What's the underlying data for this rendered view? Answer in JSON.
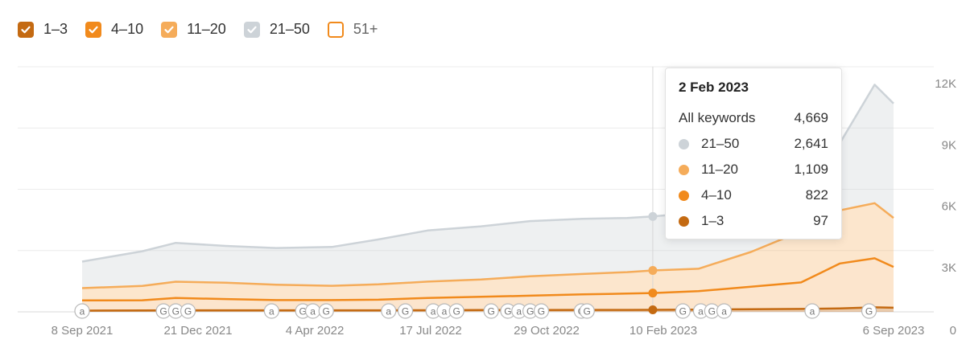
{
  "legend": {
    "items": [
      {
        "label": "1–3",
        "checked": true,
        "color": "#c46a12"
      },
      {
        "label": "4–10",
        "checked": true,
        "color": "#f18a1c"
      },
      {
        "label": "11–20",
        "checked": true,
        "color": "#f5ac5a"
      },
      {
        "label": "21–50",
        "checked": true,
        "color": "#cdd3d8"
      },
      {
        "label": "51+",
        "checked": false,
        "color": "#f18a1c"
      }
    ]
  },
  "tooltip": {
    "date": "2 Feb 2023",
    "total_label": "All keywords",
    "total_value": "4,669",
    "rows": [
      {
        "label": "21–50",
        "value": "2,641",
        "color": "#cdd3d8"
      },
      {
        "label": "11–20",
        "value": "1,109",
        "color": "#f5ac5a"
      },
      {
        "label": "4–10",
        "value": "822",
        "color": "#f18a1c"
      },
      {
        "label": "1–3",
        "value": "97",
        "color": "#c46a12"
      }
    ]
  },
  "chart_data": {
    "type": "area",
    "stacked": true,
    "x_range": [
      "2021-09-08",
      "2023-09-06"
    ],
    "x_tick_labels": [
      "8 Sep 2021",
      "21 Dec 2021",
      "4 Apr 2022",
      "17 Jul 2022",
      "29 Oct 2022",
      "10 Feb 2023",
      "6 Sep 2023"
    ],
    "y_tick_labels": [
      "0",
      "3K",
      "6K",
      "9K",
      "12K"
    ],
    "ylim": [
      0,
      12000
    ],
    "y_axis_position": "right",
    "grid": true,
    "highlight_date": "2023-02-02",
    "x": [
      "2021-09-08",
      "2021-11-01",
      "2021-12-01",
      "2022-01-15",
      "2022-03-01",
      "2022-04-20",
      "2022-06-01",
      "2022-07-15",
      "2022-09-01",
      "2022-10-15",
      "2022-12-01",
      "2023-01-10",
      "2023-02-02",
      "2023-03-15",
      "2023-05-01",
      "2023-06-15",
      "2023-07-20",
      "2023-08-20",
      "2023-09-06"
    ],
    "series": [
      {
        "name": "1–3",
        "color": "#c46a12",
        "values": [
          60,
          65,
          75,
          75,
          75,
          75,
          75,
          80,
          85,
          90,
          95,
          95,
          97,
          110,
          130,
          140,
          170,
          220,
          200
        ]
      },
      {
        "name": "4–10",
        "color": "#f18a1c",
        "values": [
          500,
          500,
          600,
          550,
          500,
          500,
          520,
          600,
          650,
          700,
          760,
          800,
          822,
          900,
          1100,
          1300,
          2200,
          2400,
          2000
        ]
      },
      {
        "name": "11–20",
        "color": "#f5ac5a",
        "values": [
          600,
          700,
          800,
          800,
          750,
          700,
          750,
          800,
          850,
          950,
          1000,
          1050,
          1109,
          1100,
          1700,
          2500,
          2600,
          2700,
          2400
        ]
      },
      {
        "name": "21–50",
        "color": "#cdd3d8",
        "values": [
          1300,
          1700,
          1900,
          1800,
          1800,
          1900,
          2200,
          2500,
          2600,
          2700,
          2700,
          2650,
          2641,
          2750,
          2900,
          3200,
          3300,
          5800,
          5600
        ]
      }
    ],
    "annotations": {
      "marker_labels": [
        "a",
        "G",
        "G",
        "G",
        "a",
        "G",
        "a",
        "G",
        "a",
        "G",
        "a",
        "a",
        "G",
        "G",
        "G",
        "a",
        "G",
        "G",
        "G",
        "G",
        "G",
        "a",
        "G",
        "a",
        "a",
        "G"
      ],
      "marker_dates": [
        "2021-09-08",
        "2021-11-20",
        "2021-12-01",
        "2021-12-12",
        "2022-02-25",
        "2022-03-25",
        "2022-04-03",
        "2022-04-15",
        "2022-06-10",
        "2022-06-25",
        "2022-07-20",
        "2022-07-30",
        "2022-08-10",
        "2022-09-10",
        "2022-09-25",
        "2022-10-05",
        "2022-10-15",
        "2022-10-25",
        "2022-11-30",
        "2022-12-05",
        "2023-03-01",
        "2023-03-17",
        "2023-03-27",
        "2023-04-07",
        "2023-06-25",
        "2023-08-15"
      ]
    }
  }
}
